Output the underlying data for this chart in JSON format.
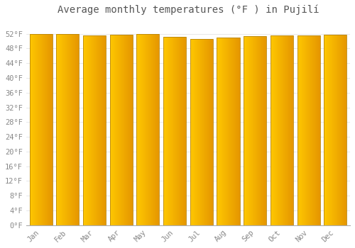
{
  "title": "Average monthly temperatures (°F ) in Pujilí",
  "months": [
    "Jan",
    "Feb",
    "Mar",
    "Apr",
    "May",
    "Jun",
    "Jul",
    "Aug",
    "Sep",
    "Oct",
    "Nov",
    "Dec"
  ],
  "values": [
    52.0,
    52.0,
    51.6,
    51.8,
    52.0,
    51.1,
    50.5,
    51.0,
    51.4,
    51.5,
    51.6,
    51.7
  ],
  "bar_color_left": "#FFD000",
  "bar_color_right": "#F5A000",
  "bar_color_edge": "#B8860B",
  "background_color": "#FFFFFF",
  "grid_color": "#DDDDDD",
  "text_color": "#888888",
  "title_color": "#555555",
  "ylim": [
    0,
    56
  ],
  "yticks": [
    0,
    4,
    8,
    12,
    16,
    20,
    24,
    28,
    32,
    36,
    40,
    44,
    48,
    52
  ],
  "ytick_labels": [
    "0°F",
    "4°F",
    "8°F",
    "12°F",
    "16°F",
    "20°F",
    "24°F",
    "28°F",
    "32°F",
    "36°F",
    "40°F",
    "44°F",
    "48°F",
    "52°F"
  ],
  "title_fontsize": 10,
  "tick_fontsize": 7.5,
  "font_family": "monospace",
  "bar_width": 0.85,
  "gradient_steps": 100
}
